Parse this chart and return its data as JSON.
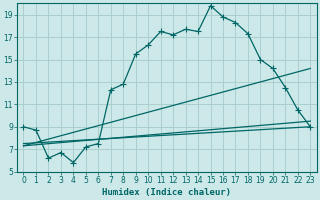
{
  "xlabel": "Humidex (Indice chaleur)",
  "ylabel": "",
  "bg_color": "#cce8e8",
  "grid_color": "#aacfcf",
  "line_color": "#006666",
  "xlim": [
    -0.5,
    23.5
  ],
  "ylim": [
    5,
    20
  ],
  "xticks": [
    0,
    1,
    2,
    3,
    4,
    5,
    6,
    7,
    8,
    9,
    10,
    11,
    12,
    13,
    14,
    15,
    16,
    17,
    18,
    19,
    20,
    21,
    22,
    23
  ],
  "yticks": [
    5,
    7,
    9,
    11,
    13,
    15,
    17,
    19
  ],
  "curve1_x": [
    0,
    1,
    2,
    3,
    4,
    5,
    6,
    7,
    8,
    9,
    10,
    11,
    12,
    13,
    14,
    15,
    16,
    17,
    18,
    19,
    20,
    21,
    22,
    23
  ],
  "curve1_y": [
    9.0,
    8.7,
    6.2,
    6.7,
    5.8,
    7.2,
    7.5,
    12.3,
    12.8,
    15.5,
    16.3,
    17.5,
    17.2,
    17.7,
    17.5,
    19.8,
    18.8,
    18.3,
    17.3,
    15.0,
    14.2,
    12.5,
    10.5,
    9.0
  ],
  "line1_x": [
    0,
    23
  ],
  "line1_y": [
    7.3,
    14.2
  ],
  "line2_x": [
    0,
    23
  ],
  "line2_y": [
    7.3,
    9.5
  ],
  "line3_x": [
    0,
    23
  ],
  "line3_y": [
    7.5,
    9.0
  ],
  "marker": "+",
  "marker_size": 4.0,
  "linewidth": 0.9
}
